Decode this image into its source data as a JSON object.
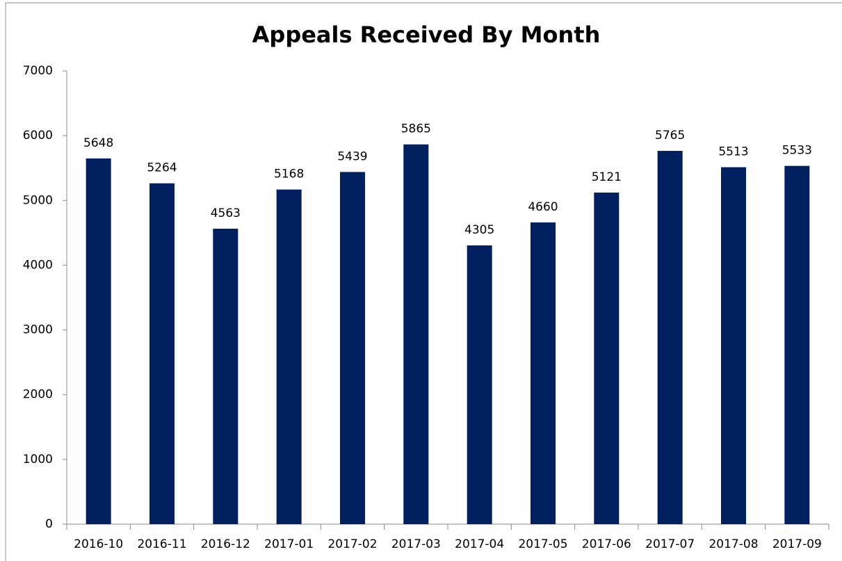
{
  "chart_data": {
    "type": "bar",
    "title": "Appeals Received By Month",
    "categories": [
      "2016-10",
      "2016-11",
      "2016-12",
      "2017-01",
      "2017-02",
      "2017-03",
      "2017-04",
      "2017-05",
      "2017-06",
      "2017-07",
      "2017-08",
      "2017-09"
    ],
    "values": [
      5648,
      5264,
      4563,
      5168,
      5439,
      5865,
      4305,
      4660,
      5121,
      5765,
      5513,
      5533
    ],
    "color": "#002060",
    "ylim": [
      0,
      7000
    ],
    "yticks": [
      0,
      1000,
      2000,
      3000,
      4000,
      5000,
      6000,
      7000
    ],
    "grid": false
  }
}
